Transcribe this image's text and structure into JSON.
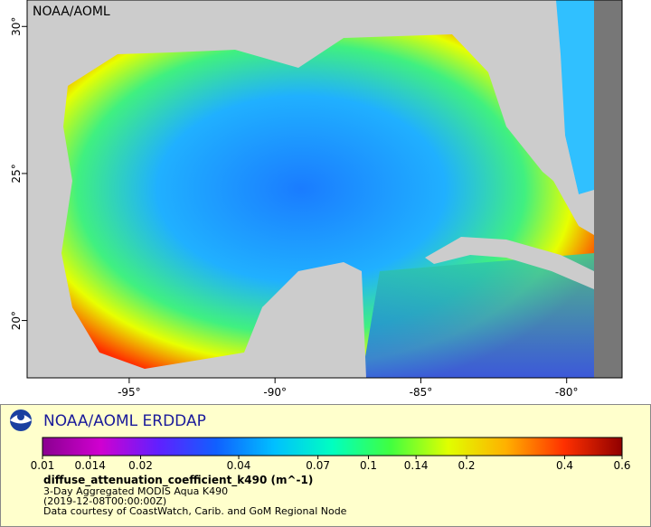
{
  "map": {
    "watermark": "NOAA/AOML",
    "xlim": [
      -98.5,
      -78.1
    ],
    "ylim": [
      18.05,
      30.9
    ],
    "xticks": [
      {
        "value": -95,
        "label": "-95°"
      },
      {
        "value": -90,
        "label": "-90°"
      },
      {
        "value": -85,
        "label": "-85°"
      },
      {
        "value": -80,
        "label": "-80°"
      }
    ],
    "yticks": [
      {
        "value": 20,
        "label": "20°"
      },
      {
        "value": 25,
        "label": "25°"
      },
      {
        "value": 30,
        "label": "30°"
      }
    ]
  },
  "legend": {
    "brand": "NOAA/AOML ERDDAP",
    "colorbar": {
      "scale": "log",
      "lim": [
        0.01,
        0.6
      ],
      "ticks": [
        0.01,
        0.014,
        0.02,
        0.04,
        0.07,
        0.1,
        0.14,
        0.2,
        0.4,
        0.6
      ],
      "colors": [
        "#8a0090",
        "#d000d0",
        "#6020ff",
        "#1060ff",
        "#00c0ff",
        "#00ffc0",
        "#40ff40",
        "#e0ff00",
        "#ffb000",
        "#ff3000",
        "#900000"
      ]
    },
    "variable": "diffuse_attenuation_coefficient_k490 (m^-1)",
    "lines": [
      "3-Day Aggregated MODIS Aqua K490",
      "(2019-12-08T00:00:00Z)",
      "Data courtesy of CoastWatch, Carib. and GoM Regional Node"
    ]
  }
}
